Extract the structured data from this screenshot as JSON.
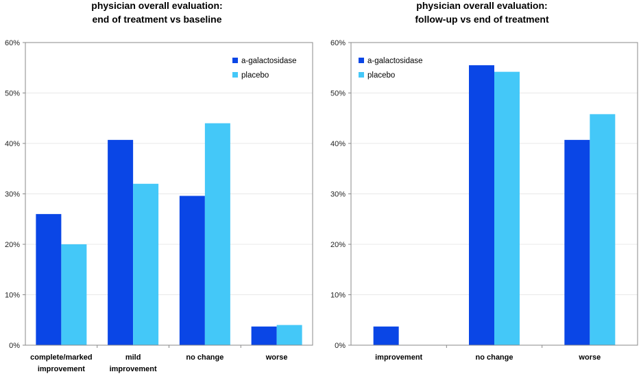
{
  "colors": {
    "series1": "#0a46e6",
    "series2": "#44c8f8",
    "grid": "#e8e8e8",
    "axis": "#888888"
  },
  "chart_data": [
    {
      "type": "bar",
      "title": [
        "physician overall evaluation:",
        "end of treatment vs baseline"
      ],
      "xlabel": "",
      "ylabel": "",
      "ylim": [
        0,
        60
      ],
      "yticks": [
        0,
        10,
        20,
        30,
        40,
        50,
        60
      ],
      "ytick_labels": [
        "0%",
        "10%",
        "20%",
        "30%",
        "40%",
        "50%",
        "60%"
      ],
      "grid": true,
      "legend_position": "top-right",
      "categories": [
        [
          "complete/marked",
          "improvement"
        ],
        [
          "mild",
          "improvement"
        ],
        [
          "no change"
        ],
        [
          "worse"
        ]
      ],
      "series": [
        {
          "name": "a-galactosidase",
          "values": [
            26,
            40.7,
            29.6,
            3.7
          ]
        },
        {
          "name": "placebo",
          "values": [
            20,
            32,
            44,
            4
          ]
        }
      ]
    },
    {
      "type": "bar",
      "title": [
        "physician overall evaluation:",
        "follow-up vs end of treatment"
      ],
      "xlabel": "",
      "ylabel": "",
      "ylim": [
        0,
        60
      ],
      "yticks": [
        0,
        10,
        20,
        30,
        40,
        50,
        60
      ],
      "ytick_labels": [
        "0%",
        "10%",
        "20%",
        "30%",
        "40%",
        "50%",
        "60%"
      ],
      "grid": true,
      "legend_position": "top-left",
      "categories": [
        [
          "improvement"
        ],
        [
          "no change"
        ],
        [
          "worse"
        ]
      ],
      "series": [
        {
          "name": "a-galactosidase",
          "values": [
            3.7,
            55.5,
            40.7
          ]
        },
        {
          "name": "placebo",
          "values": [
            0,
            54.2,
            45.8
          ]
        }
      ]
    }
  ]
}
